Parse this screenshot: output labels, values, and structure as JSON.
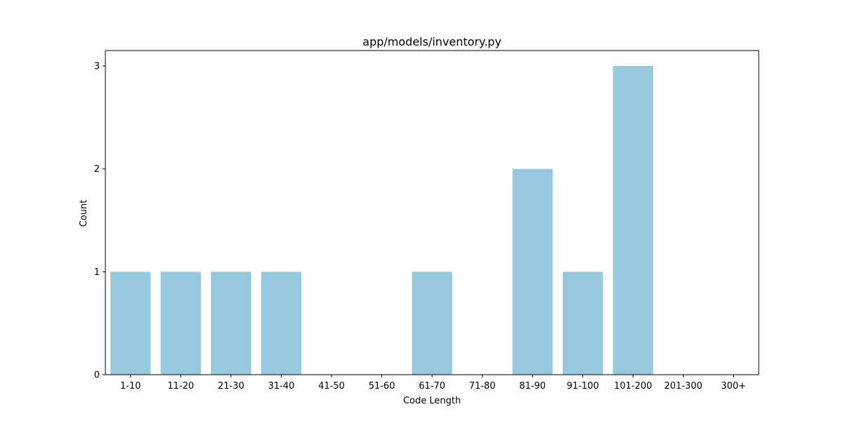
{
  "chart_data": {
    "type": "bar",
    "title": "app/models/inventory.py",
    "xlabel": "Code Length",
    "ylabel": "Count",
    "categories": [
      "1-10",
      "11-20",
      "21-30",
      "31-40",
      "41-50",
      "51-60",
      "61-70",
      "71-80",
      "81-90",
      "91-100",
      "101-200",
      "201-300",
      "300+"
    ],
    "values": [
      1,
      1,
      1,
      1,
      0,
      0,
      1,
      0,
      2,
      1,
      3,
      0,
      0
    ],
    "ylim": [
      0,
      3.15
    ],
    "yticks": [
      0,
      1,
      2,
      3
    ],
    "grid": false,
    "legend": "none",
    "bar_color": "#96c9df"
  }
}
